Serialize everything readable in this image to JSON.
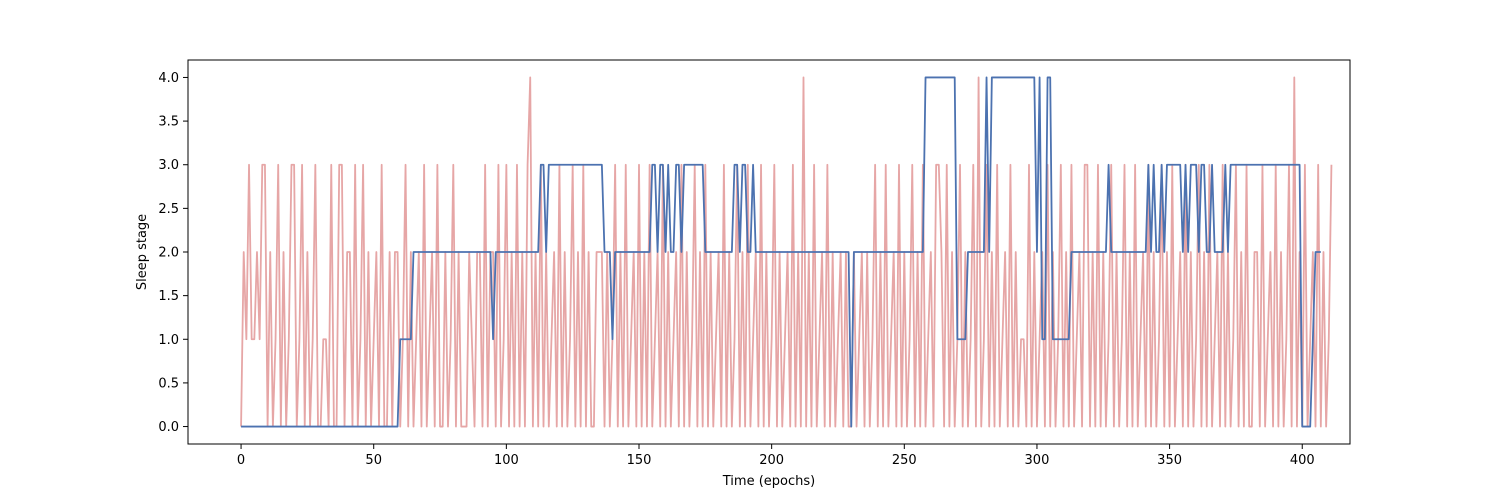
{
  "chart_data": {
    "type": "line",
    "title": "",
    "xlabel": "Time (epochs)",
    "ylabel": "Sleep stage",
    "xlim": [
      -20,
      418
    ],
    "ylim": [
      -0.2,
      4.2
    ],
    "xticks": [
      0,
      50,
      100,
      150,
      200,
      250,
      300,
      350,
      400
    ],
    "yticks": [
      0.0,
      0.5,
      1.0,
      1.5,
      2.0,
      2.5,
      3.0,
      3.5,
      4.0
    ],
    "xtick_labels": [
      "0",
      "50",
      "100",
      "150",
      "200",
      "250",
      "300",
      "350",
      "400"
    ],
    "ytick_labels": [
      "0.0",
      "0.5",
      "1.0",
      "1.5",
      "2.0",
      "2.5",
      "3.0",
      "3.5",
      "4.0"
    ],
    "grid": false,
    "series": [
      {
        "color": "#dd8888",
        "opacity": 0.75,
        "values": [
          0,
          2,
          1,
          3,
          1,
          1,
          2,
          1,
          3,
          3,
          0,
          2,
          0,
          1,
          3,
          0,
          2,
          0,
          1,
          3,
          3,
          0,
          1,
          3,
          0,
          2,
          0,
          1,
          3,
          0,
          0,
          1,
          1,
          0,
          3,
          0,
          0,
          3,
          3,
          0,
          2,
          2,
          0,
          3,
          0,
          1,
          3,
          0,
          2,
          0,
          1,
          2,
          0,
          3,
          0,
          0,
          2,
          0,
          2,
          2,
          0,
          1,
          3,
          0,
          2,
          0,
          1,
          2,
          0,
          3,
          0,
          1,
          2,
          0,
          3,
          0,
          0,
          2,
          0,
          1,
          3,
          0,
          2,
          0,
          0,
          0,
          2,
          1,
          0,
          2,
          2,
          0,
          3,
          0,
          2,
          2,
          0,
          3,
          0,
          1,
          3,
          0,
          2,
          0,
          3,
          0,
          2,
          0,
          3,
          4,
          0,
          2,
          0,
          3,
          0,
          2,
          0,
          1,
          2,
          0,
          3,
          0,
          2,
          0,
          1,
          3,
          0,
          2,
          0,
          3,
          0,
          2,
          0,
          0,
          2,
          2,
          2,
          0,
          2,
          0,
          1,
          3,
          0,
          2,
          0,
          3,
          0,
          1,
          2,
          0,
          3,
          0,
          2,
          0,
          3,
          0,
          1,
          2,
          0,
          3,
          0,
          2,
          0,
          1,
          2,
          0,
          3,
          0,
          2,
          0,
          1,
          3,
          0,
          2,
          0,
          3,
          0,
          2,
          0,
          1,
          2,
          0,
          3,
          0,
          2,
          0,
          1,
          3,
          0,
          2,
          0,
          3,
          0,
          1,
          2,
          0,
          3,
          0,
          2,
          0,
          1,
          3,
          0,
          2,
          0,
          1,
          2,
          0,
          3,
          0,
          2,
          0,
          4,
          0,
          2,
          0,
          3,
          0,
          1,
          2,
          0,
          3,
          0,
          2,
          0,
          1,
          2,
          0,
          2,
          0,
          0,
          2,
          0,
          1,
          2,
          0,
          2,
          0,
          1,
          3,
          0,
          2,
          0,
          3,
          0,
          1,
          2,
          0,
          3,
          0,
          2,
          0,
          1,
          3,
          0,
          2,
          0,
          3,
          0,
          1,
          2,
          0,
          3,
          3,
          2,
          0,
          3,
          0,
          2,
          0,
          1,
          3,
          0,
          2,
          0,
          1,
          3,
          0,
          4,
          0,
          1,
          3,
          0,
          2,
          0,
          3,
          0,
          1,
          2,
          0,
          3,
          0,
          2,
          0,
          1,
          1,
          0,
          3,
          0,
          2,
          0,
          1,
          2,
          0,
          3,
          0,
          2,
          0,
          1,
          3,
          0,
          2,
          0,
          3,
          0,
          1,
          2,
          0,
          3,
          3,
          0,
          2,
          0,
          3,
          0,
          2,
          0,
          1,
          3,
          0,
          2,
          0,
          1,
          3,
          0,
          2,
          0,
          3,
          0,
          1,
          2,
          0,
          3,
          0,
          2,
          0,
          1,
          3,
          0,
          2,
          0,
          3,
          0,
          1,
          2,
          0,
          3,
          0,
          2,
          0,
          1,
          3,
          0,
          2,
          0,
          3,
          0,
          1,
          2,
          0,
          3,
          0,
          2,
          0,
          1,
          3,
          0,
          2,
          0,
          3,
          0,
          0,
          2,
          2,
          0,
          3,
          0,
          1,
          2,
          0,
          3,
          0,
          2,
          0,
          1,
          3,
          0,
          4,
          0,
          2,
          0,
          3,
          0,
          1,
          2,
          0,
          3,
          0,
          2,
          0,
          1,
          3
        ]
      },
      {
        "color": "#4c72b0",
        "opacity": 1.0,
        "values": [
          0,
          0,
          0,
          0,
          0,
          0,
          0,
          0,
          0,
          0,
          0,
          0,
          0,
          0,
          0,
          0,
          0,
          0,
          0,
          0,
          0,
          0,
          0,
          0,
          0,
          0,
          0,
          0,
          0,
          0,
          0,
          0,
          0,
          0,
          0,
          0,
          0,
          0,
          0,
          0,
          0,
          0,
          0,
          0,
          0,
          0,
          0,
          0,
          0,
          0,
          0,
          0,
          0,
          0,
          0,
          0,
          0,
          0,
          0,
          0,
          1,
          1,
          1,
          1,
          1,
          2,
          2,
          2,
          2,
          2,
          2,
          2,
          2,
          2,
          2,
          2,
          2,
          2,
          2,
          2,
          2,
          2,
          2,
          2,
          2,
          2,
          2,
          2,
          2,
          2,
          2,
          2,
          2,
          2,
          2,
          1,
          2,
          2,
          2,
          2,
          2,
          2,
          2,
          2,
          2,
          2,
          2,
          2,
          2,
          2,
          2,
          2,
          2,
          3,
          3,
          2,
          3,
          3,
          3,
          3,
          3,
          3,
          3,
          3,
          3,
          3,
          3,
          3,
          3,
          3,
          3,
          3,
          3,
          3,
          3,
          3,
          3,
          2,
          2,
          2,
          1,
          2,
          2,
          2,
          2,
          2,
          2,
          2,
          2,
          2,
          2,
          2,
          2,
          2,
          2,
          3,
          3,
          2,
          3,
          3,
          2,
          3,
          2,
          2,
          3,
          3,
          2,
          3,
          3,
          3,
          3,
          3,
          3,
          3,
          3,
          2,
          2,
          2,
          2,
          2,
          2,
          2,
          2,
          2,
          2,
          2,
          3,
          3,
          2,
          3,
          3,
          2,
          2,
          3,
          2,
          2,
          2,
          2,
          2,
          2,
          2,
          2,
          2,
          2,
          2,
          2,
          2,
          2,
          2,
          2,
          2,
          2,
          2,
          2,
          2,
          2,
          2,
          2,
          2,
          2,
          2,
          2,
          2,
          2,
          2,
          2,
          2,
          2,
          2,
          2,
          0,
          2,
          2,
          2,
          2,
          2,
          2,
          2,
          2,
          2,
          2,
          2,
          2,
          2,
          2,
          2,
          2,
          2,
          2,
          2,
          2,
          2,
          2,
          2,
          2,
          2,
          2,
          2,
          4,
          4,
          4,
          4,
          4,
          4,
          4,
          4,
          4,
          4,
          4,
          4,
          1,
          1,
          1,
          1,
          2,
          2,
          2,
          2,
          2,
          2,
          2,
          4,
          2,
          4,
          4,
          4,
          4,
          4,
          4,
          4,
          4,
          4,
          4,
          4,
          4,
          4,
          4,
          4,
          4,
          4,
          2,
          4,
          1,
          1,
          4,
          4,
          1,
          1,
          1,
          1,
          1,
          1,
          1,
          2,
          2,
          2,
          2,
          2,
          2,
          2,
          2,
          2,
          2,
          2,
          2,
          2,
          2,
          3,
          2,
          2,
          2,
          2,
          2,
          2,
          2,
          2,
          2,
          2,
          2,
          2,
          2,
          2,
          3,
          2,
          3,
          2,
          2,
          3,
          2,
          3,
          3,
          3,
          3,
          3,
          3,
          2,
          3,
          2,
          3,
          3,
          3,
          2,
          3,
          3,
          2,
          2,
          3,
          2,
          2,
          2,
          2,
          3,
          2,
          3,
          3,
          3,
          3,
          3,
          3,
          3,
          3,
          3,
          3,
          3,
          3,
          3,
          3,
          3,
          3,
          3,
          3,
          3,
          3,
          3,
          3,
          3,
          3,
          3,
          3,
          3,
          0,
          0,
          0,
          0,
          1,
          2,
          2,
          2
        ]
      }
    ]
  }
}
